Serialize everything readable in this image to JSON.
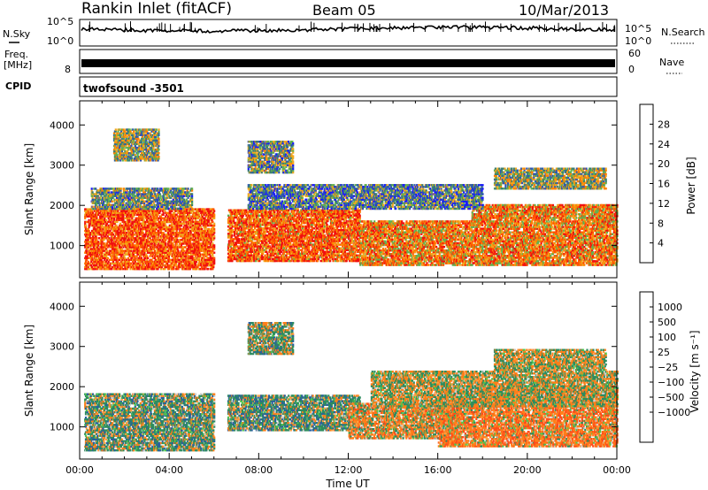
{
  "header": {
    "title": "Rankin Inlet (fitACF)",
    "beam": "Beam 05",
    "date": "10/Mar/2013"
  },
  "summary_panels": {
    "nsky_label": "N.Sky",
    "nsearch_label": "N.Search",
    "noise_tick_top": "10^5",
    "noise_tick_bottom": "10^0",
    "freq_label_line1": "Freq.",
    "freq_label_line2": "[MHz]",
    "freq_tick": "8",
    "nave_label": "Nave",
    "nave_tick_top": "60",
    "nave_tick_bottom": "0",
    "cpid_label": "CPID",
    "cpid_value": "twofsound -3501"
  },
  "colors": {
    "power_scale": [
      "#1a1aff",
      "#2f55b4",
      "#3c7f70",
      "#63b050",
      "#f0a820",
      "#ff8000",
      "#ff5000",
      "#f01010"
    ],
    "velocity_scale": [
      "#ff1a1a",
      "#ff4d1a",
      "#ff7f1a",
      "#ffa040",
      "#cccccc",
      "#cccccc",
      "#50c850",
      "#2e8c5e",
      "#2a5f9e",
      "#1a3aaf"
    ]
  },
  "chart_data": [
    {
      "type": "heatmap",
      "name": "power",
      "ylabel": "Slant Range [km]",
      "xlabel": "",
      "x_tick_labels": [
        "00:00",
        "04:00",
        "08:00",
        "12:00",
        "16:00",
        "20:00",
        "00:00"
      ],
      "x_range_hours": [
        0,
        24
      ],
      "y_ticks": [
        1000,
        2000,
        3000,
        4000
      ],
      "ylim": [
        200,
        4600
      ],
      "colorbar": {
        "label": "Power [dB]",
        "ticks": [
          "4",
          "8",
          "12",
          "16",
          "20",
          "24",
          "28"
        ],
        "range": [
          0,
          32
        ]
      },
      "scatter_bands": [
        {
          "t0": 0.2,
          "t1": 6.0,
          "r0": 400,
          "r1": 1900,
          "level": 26
        },
        {
          "t0": 6.6,
          "t1": 12.5,
          "r0": 600,
          "r1": 1900,
          "level": 25
        },
        {
          "t0": 12.5,
          "t1": 17.5,
          "r0": 500,
          "r1": 1600,
          "level": 22
        },
        {
          "t0": 17.5,
          "t1": 24.0,
          "r0": 500,
          "r1": 2000,
          "level": 22
        },
        {
          "t0": 0.5,
          "t1": 5.0,
          "r0": 1900,
          "r1": 2400,
          "level": 12
        },
        {
          "t0": 7.5,
          "t1": 18.0,
          "r0": 1900,
          "r1": 2500,
          "level": 10
        },
        {
          "t0": 7.5,
          "t1": 9.5,
          "r0": 2800,
          "r1": 3600,
          "level": 12
        },
        {
          "t0": 18.5,
          "t1": 23.5,
          "r0": 2400,
          "r1": 2900,
          "level": 14
        },
        {
          "t0": 1.5,
          "t1": 3.5,
          "r0": 3100,
          "r1": 3900,
          "level": 14
        }
      ]
    },
    {
      "type": "heatmap",
      "name": "velocity",
      "ylabel": "Slant Range [km]",
      "xlabel": "Time UT",
      "x_tick_labels": [
        "00:00",
        "04:00",
        "08:00",
        "12:00",
        "16:00",
        "20:00",
        "00:00"
      ],
      "x_range_hours": [
        0,
        24
      ],
      "y_ticks": [
        1000,
        2000,
        3000,
        4000
      ],
      "ylim": [
        200,
        4600
      ],
      "colorbar": {
        "label": "Velocity [m s⁻¹]",
        "ticks": [
          "1000",
          "500",
          "100",
          "25",
          "−25",
          "−100",
          "−500",
          "−1000"
        ],
        "range": [
          -1500,
          1500
        ]
      },
      "scatter_bands": [
        {
          "t0": 0.2,
          "t1": 6.0,
          "r0": 400,
          "r1": 1800,
          "level": 200
        },
        {
          "t0": 6.6,
          "t1": 12.5,
          "r0": 900,
          "r1": 1800,
          "level": 250
        },
        {
          "t0": 12.0,
          "t1": 17.0,
          "r0": 700,
          "r1": 1600,
          "level": -150
        },
        {
          "t0": 16.0,
          "t1": 24.0,
          "r0": 500,
          "r1": 2000,
          "level": -300
        },
        {
          "t0": 13.0,
          "t1": 24.0,
          "r0": 1500,
          "r1": 2400,
          "level": 0
        },
        {
          "t0": 7.5,
          "t1": 9.5,
          "r0": 2800,
          "r1": 3600,
          "level": 150
        },
        {
          "t0": 18.5,
          "t1": 23.5,
          "r0": 2400,
          "r1": 2900,
          "level": 0
        }
      ]
    }
  ]
}
